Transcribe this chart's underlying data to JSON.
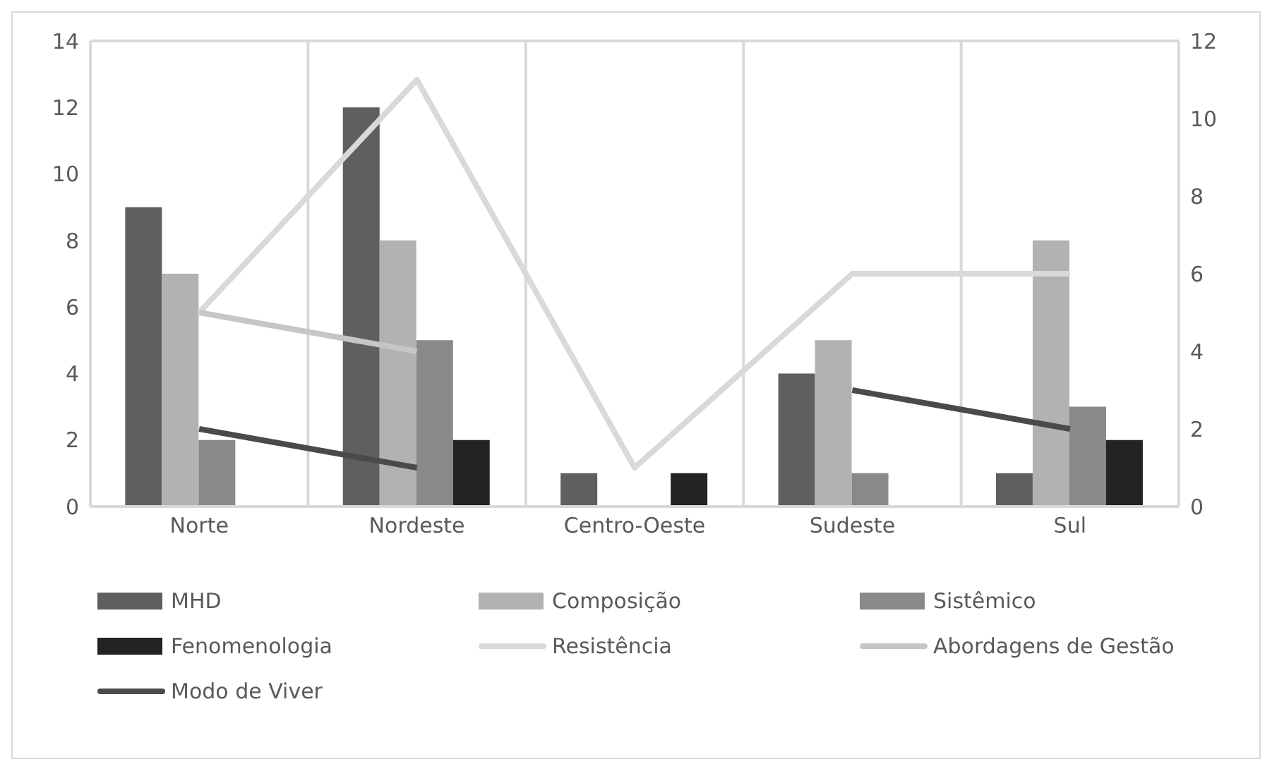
{
  "chart_data": {
    "type": "bar",
    "categories": [
      "Norte",
      "Nordeste",
      "Centro-Oeste",
      "Sudeste",
      "Sul"
    ],
    "series": [
      {
        "name": "MHD",
        "color": "#5f5f5f",
        "values": [
          9,
          12,
          1,
          4,
          1
        ]
      },
      {
        "name": "Composição",
        "color": "#b2b2b2",
        "values": [
          7,
          8,
          0,
          5,
          8
        ]
      },
      {
        "name": "Sistêmico",
        "color": "#898989",
        "values": [
          2,
          5,
          0,
          1,
          3
        ]
      },
      {
        "name": "Fenomenologia",
        "color": "#232323",
        "values": [
          0,
          2,
          1,
          0,
          2
        ]
      },
      {
        "name": "Resistência",
        "type": "line",
        "axis": "y2",
        "color": "#d9d9d9",
        "values": [
          5,
          11,
          1,
          6,
          6
        ]
      },
      {
        "name": "Abordagens de Gestão",
        "type": "line",
        "axis": "y2",
        "color": "#c6c6c6",
        "values": [
          5,
          4,
          null,
          null,
          null
        ]
      },
      {
        "name": "Modo de Viver",
        "type": "line",
        "axis": "y2",
        "color": "#4a4a4a",
        "values": [
          2,
          1,
          null,
          3,
          2
        ]
      }
    ],
    "ylim": [
      0,
      14
    ],
    "yticks": [
      0,
      2,
      4,
      6,
      8,
      10,
      12,
      14
    ],
    "y2lim": [
      0,
      12
    ],
    "y2ticks": [
      0,
      2,
      4,
      6,
      8,
      10,
      12
    ],
    "grid": true,
    "legend": "bottom",
    "marker": "none",
    "line_style": "solid"
  }
}
